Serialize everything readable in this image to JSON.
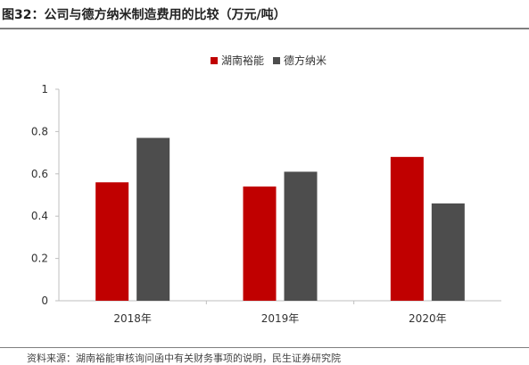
{
  "title": "图32：公司与德方纳米制造费用的比较（万元/吨）",
  "source": "资料来源：湖南裕能审核询问函中有关财务事项的说明，民生证券研究院",
  "colors": {
    "series_1": "#C00000",
    "series_2": "#4D4D4D",
    "axis": "#BFBFBF",
    "text": "#333333"
  },
  "chart_data": {
    "type": "bar",
    "categories": [
      "2018年",
      "2019年",
      "2020年"
    ],
    "series": [
      {
        "name": "湖南裕能",
        "values": [
          0.56,
          0.54,
          0.68
        ]
      },
      {
        "name": "德方纳米",
        "values": [
          0.77,
          0.61,
          0.46
        ]
      }
    ],
    "ylim": [
      0,
      1
    ],
    "yticks": [
      0,
      0.2,
      0.4,
      0.6,
      0.8,
      1
    ],
    "ytick_labels": [
      "0",
      "0.2",
      "0.4",
      "0.6",
      "0.8",
      "1"
    ],
    "grid": false,
    "legend_position": "top-center"
  }
}
